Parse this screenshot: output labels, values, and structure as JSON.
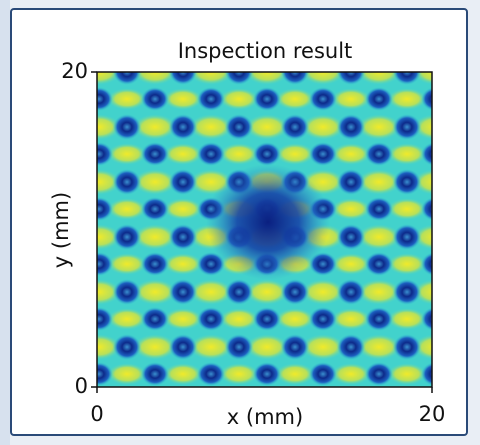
{
  "chart_data": {
    "type": "heatmap",
    "title": "Inspection result",
    "x_label": "x (mm)",
    "y_label": "y (mm)",
    "xlim": [
      0,
      20
    ],
    "ylim": [
      0,
      20
    ],
    "xticks": [
      0,
      20
    ],
    "yticks": [
      0,
      20
    ]
  }
}
